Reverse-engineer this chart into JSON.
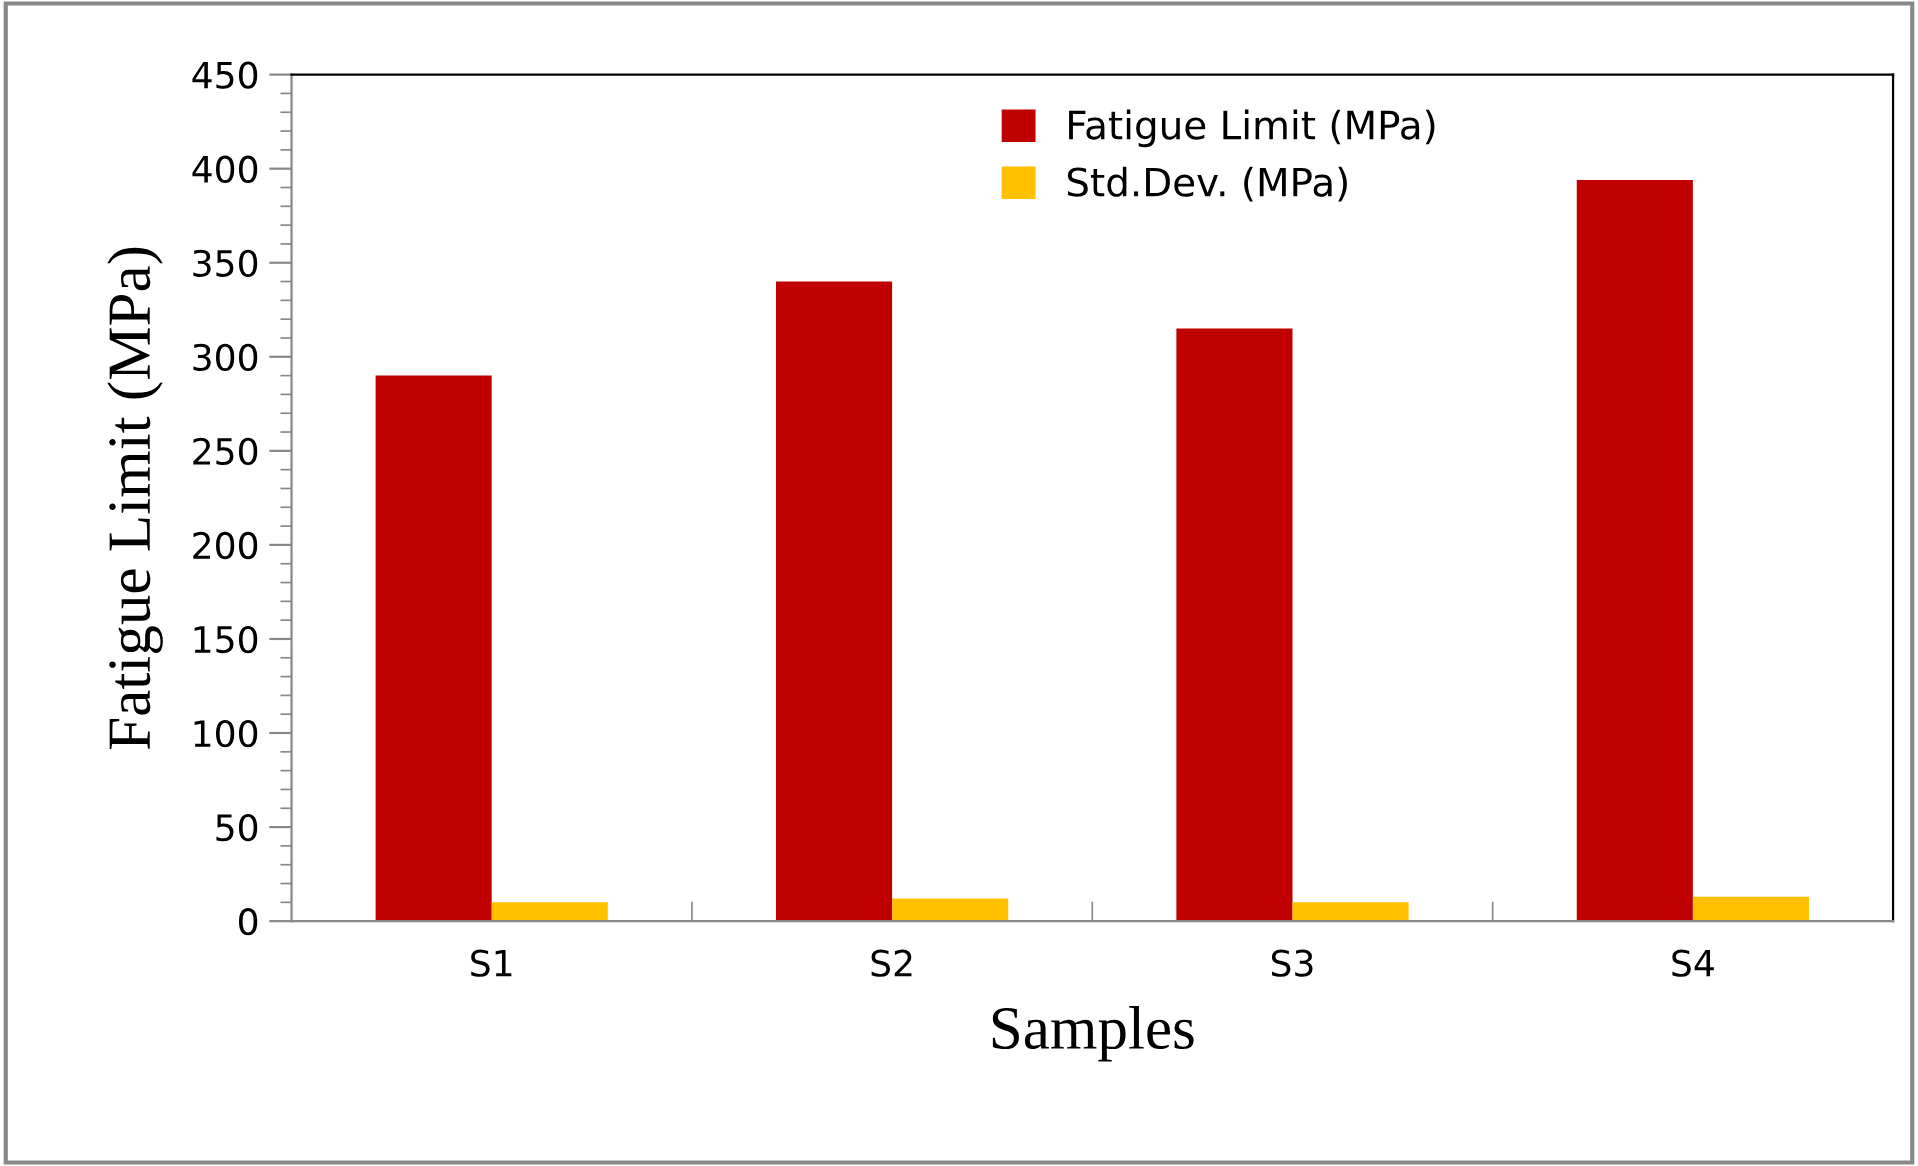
{
  "chart_data": {
    "type": "bar",
    "xlabel": "Samples",
    "ylabel": "Fatigue Limit (MPa)",
    "categories": [
      "S1",
      "S2",
      "S3",
      "S4"
    ],
    "series": [
      {
        "name": "Fatigue Limit (MPa)",
        "color": "#c00000",
        "values": [
          290,
          340,
          315,
          394
        ]
      },
      {
        "name": "Std.Dev. (MPa)",
        "color": "#ffc000",
        "values": [
          10,
          12,
          10,
          13
        ]
      }
    ],
    "ylim": [
      0,
      450
    ],
    "yticks": [
      0,
      50,
      100,
      150,
      200,
      250,
      300,
      350,
      400,
      450
    ],
    "grid": false,
    "legend": "top"
  }
}
